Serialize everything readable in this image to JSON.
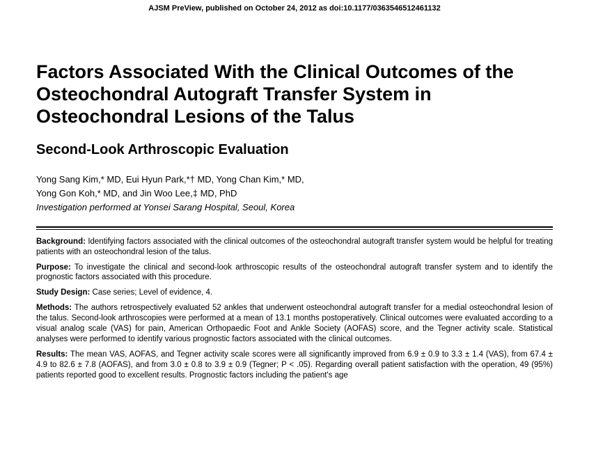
{
  "preview": "AJSM PreView, published on October 24, 2012 as doi:10.1177/0363546512461132",
  "title": "Factors Associated With the Clinical Outcomes of the Osteochondral Autograft Transfer System in Osteochondral Lesions of the Talus",
  "subtitle": "Second-Look Arthroscopic Evaluation",
  "authors_line1": "Yong Sang Kim,* MD, Eui Hyun Park,*† MD, Yong Chan Kim,* MD,",
  "authors_line2": "Yong Gon Koh,* MD, and Jin Woo Lee,‡ MD, PhD",
  "affiliation": "Investigation performed at Yonsei Sarang Hospital, Seoul, Korea",
  "abstract": {
    "background_label": "Background:",
    "background_text": " Identifying factors associated with the clinical outcomes of the osteochondral autograft transfer system would be helpful for treating patients with an osteochondral lesion of the talus.",
    "purpose_label": "Purpose:",
    "purpose_text": " To investigate the clinical and second-look arthroscopic results of the osteochondral autograft transfer system and to identify the prognostic factors associated with this procedure.",
    "design_label": "Study Design:",
    "design_text": " Case series; Level of evidence, 4.",
    "methods_label": "Methods:",
    "methods_text": " The authors retrospectively evaluated 52 ankles that underwent osteochondral autograft transfer for a medial osteochondral lesion of the talus. Second-look arthroscopies were performed at a mean of 13.1 months postoperatively. Clinical outcomes were evaluated according to a visual analog scale (VAS) for pain, American Orthopaedic Foot and Ankle Society (AOFAS) score, and the Tegner activity scale. Statistical analyses were performed to identify various prognostic factors associated with the clinical outcomes.",
    "results_label": "Results:",
    "results_text": " The mean VAS, AOFAS, and Tegner activity scale scores were all significantly improved from 6.9 ± 0.9 to 3.3 ± 1.4 (VAS), from 67.4 ± 4.9 to 82.6 ± 7.8 (AOFAS), and from 3.0 ± 0.8 to 3.9 ± 0.9 (Tegner; P < .05). Regarding overall patient satisfaction with the operation, 49 (95%) patients reported good to excellent results. Prognostic factors including the patient's age"
  },
  "colors": {
    "text": "#000000",
    "background": "#ffffff",
    "rule": "#000000"
  },
  "typography": {
    "title_fontsize": 27,
    "subtitle_fontsize": 20,
    "body_fontsize": 11.5,
    "author_fontsize": 13,
    "preview_fontsize": 11,
    "font_family": "Arial, Helvetica, sans-serif"
  }
}
